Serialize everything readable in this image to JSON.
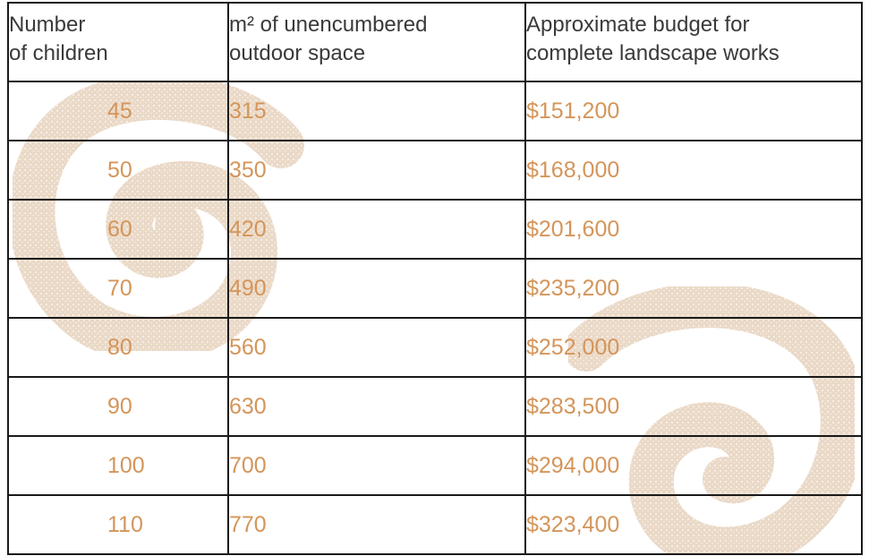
{
  "table": {
    "headers": [
      {
        "line1": "Number",
        "line2": "of children"
      },
      {
        "line1": "m² of unencumbered",
        "line2": "outdoor space"
      },
      {
        "line1": "Approximate budget for",
        "line2": "complete landscape works"
      }
    ],
    "rows": [
      {
        "children": "45",
        "space": "315",
        "budget": "$151,200"
      },
      {
        "children": "50",
        "space": "350",
        "budget": "$168,000"
      },
      {
        "children": "60",
        "space": "420",
        "budget": "$201,600"
      },
      {
        "children": "70",
        "space": "490",
        "budget": "$235,200"
      },
      {
        "children": "80",
        "space": "560",
        "budget": "$252,000"
      },
      {
        "children": "90",
        "space": "630",
        "budget": "$283,500"
      },
      {
        "children": "100",
        "space": "700",
        "budget": "$294,000"
      },
      {
        "children": "110",
        "space": "770",
        "budget": "$323,400"
      }
    ]
  },
  "colors": {
    "value_text": "#d4955a",
    "header_text": "#3a3a3a",
    "border": "#1a1a1a",
    "watermark": "#e9d9c8"
  },
  "watermark": {
    "icon": "spiral-swirl-icon"
  }
}
